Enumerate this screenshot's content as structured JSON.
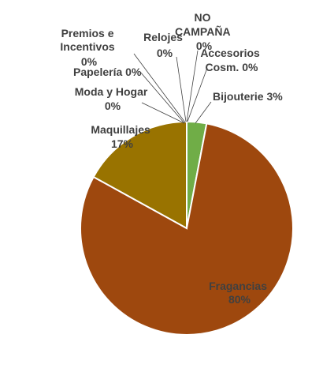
{
  "chart_data": {
    "type": "pie",
    "slices": [
      {
        "label": "Bijouterie",
        "value": 3,
        "pct_label": "3%",
        "color": "#70AD47"
      },
      {
        "label": "Fragancias",
        "value": 80,
        "pct_label": "80%",
        "color": "#9E480E"
      },
      {
        "label": "Maquillajes",
        "value": 17,
        "pct_label": "17%",
        "color": "#997300"
      },
      {
        "label": "Moda y Hogar",
        "value": 0,
        "pct_label": "0%",
        "color": "#43682B"
      },
      {
        "label": "Papelería",
        "value": 0,
        "pct_label": "0%",
        "color": "#264478"
      },
      {
        "label": "Premios e Incentivos",
        "value": 0,
        "pct_label": "0%",
        "color": "#636363"
      },
      {
        "label": "Relojes",
        "value": 0,
        "pct_label": "0%",
        "color": "#255E91"
      },
      {
        "label": "NO CAMPAÑA",
        "value": 0,
        "pct_label": "0%",
        "color": "#A5A5A5"
      },
      {
        "label": "Accesorios Cosm.",
        "value": 0,
        "pct_label": "0%",
        "color": "#5B9BD5"
      }
    ],
    "legend": "none",
    "data_labels": "outside-with-leader-lines"
  }
}
